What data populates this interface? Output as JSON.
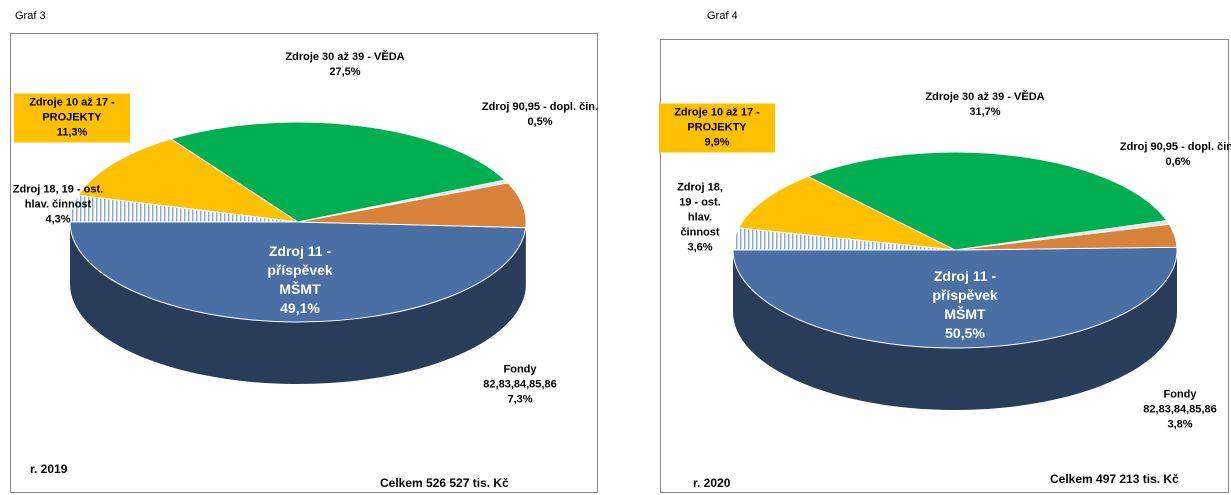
{
  "chart_data": [
    {
      "type": "pie3d",
      "title": "Graf 3",
      "categories": [
        "Zdroj 11 - příspěvek MŠMT",
        "Fondy 82,83,84,85,86",
        "Zdroj 90,95 - dopl. čin.",
        "Zdroje 30 až 39 - VĚDA",
        "Zdroje 10 až 17 - PROJEKTY",
        "Zdroj 18, 19 - ost. hlav. činnost"
      ],
      "values": [
        49.1,
        7.3,
        0.5,
        27.5,
        11.3,
        4.3
      ],
      "value_labels": [
        "49,1%",
        "7,3%",
        "0,5%",
        "27,5%",
        "11,3%",
        "4,3%"
      ],
      "colors": [
        "#4a6fa5",
        "#d9823b",
        "#e6e6e6",
        "#00b050",
        "#ffc000",
        "#8ea9db"
      ],
      "annotations": [
        "r. 2019",
        "Celkem 526 527 tis. Kč"
      ]
    },
    {
      "type": "pie3d",
      "title": "Graf 4",
      "categories": [
        "Zdroj 11 - příspěvek MŠMT",
        "Fondy 82,83,84,85,86",
        "Zdroj 90,95 - dopl. čin.",
        "Zdroje 30 až 39 - VĚDA",
        "Zdroje 10 až 17 - PROJEKTY",
        "Zdroj 18, 19 - ost. hlav. činnost"
      ],
      "values": [
        50.5,
        3.8,
        0.6,
        31.7,
        9.9,
        3.6
      ],
      "value_labels": [
        "50,5%",
        "3,8%",
        "0,6%",
        "31,7%",
        "9,9%",
        "3,6%"
      ],
      "colors": [
        "#4a6fa5",
        "#d9823b",
        "#e6e6e6",
        "#00b050",
        "#ffc000",
        "#8ea9db"
      ],
      "annotations": [
        "r. 2020",
        "Celkem 497 213 tis. Kč"
      ]
    }
  ]
}
